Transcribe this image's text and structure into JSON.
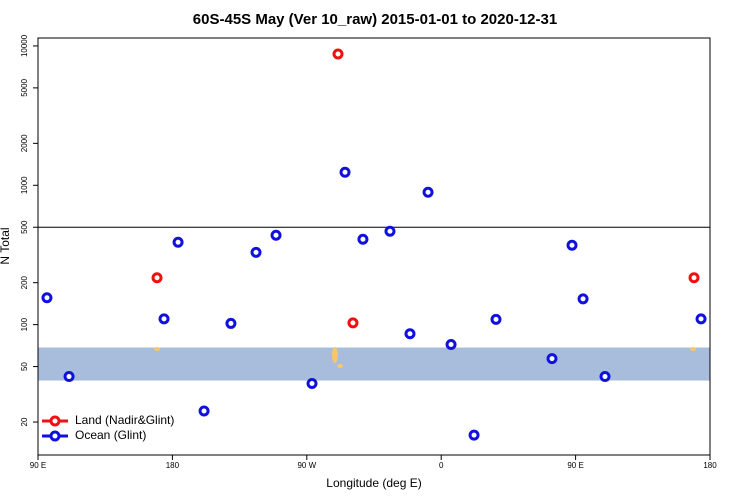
{
  "chart_data": {
    "type": "scatter",
    "title": "60S-45S May (Ver 10_raw)   2015-01-01 to 2020-12-31",
    "x_label": "Longitude (deg E)",
    "y_label": "N Total",
    "log_y": true,
    "xlim": [
      90,
      540
    ],
    "ylim": [
      11.6,
      11400
    ],
    "xticks": [
      {
        "value": 90,
        "label": "90 E"
      },
      {
        "value": 180,
        "label": "180"
      },
      {
        "value": 270,
        "label": "90 W"
      },
      {
        "value": 360,
        "label": "0"
      },
      {
        "value": 450,
        "label": "90 E"
      },
      {
        "value": 540,
        "label": "180"
      }
    ],
    "yticks": [
      20,
      50,
      100,
      200,
      500,
      1000,
      2000,
      5000,
      10000
    ],
    "reference_line": 500,
    "shaded_band": [
      39.7,
      68.5
    ],
    "band_color": "#a8bcdc",
    "legend": "bottom-left",
    "series": [
      {
        "name": "Land (Nadir&Glint)",
        "color": "#ee1111",
        "x": [
          290.9,
          169.7,
          300.9,
          529.3
        ],
        "values": [
          8750,
          217,
          103,
          217
        ]
      },
      {
        "name": "Ocean (Glint)",
        "color": "#1111dd",
        "x": [
          96.0,
          110.8,
          174.4,
          183.8,
          201.2,
          219.2,
          236.0,
          249.4,
          273.5,
          295.6,
          307.6,
          325.7,
          339.1,
          351.2,
          366.6,
          382.0,
          396.7,
          434.2,
          447.6,
          455.0,
          469.7,
          534.0
        ],
        "values": [
          156,
          42.4,
          110,
          390,
          24,
          102,
          330,
          438,
          37.8,
          1240,
          410,
          468,
          86,
          891,
          72,
          16.1,
          109,
          57,
          371,
          153,
          42.4,
          110
        ]
      }
    ]
  }
}
